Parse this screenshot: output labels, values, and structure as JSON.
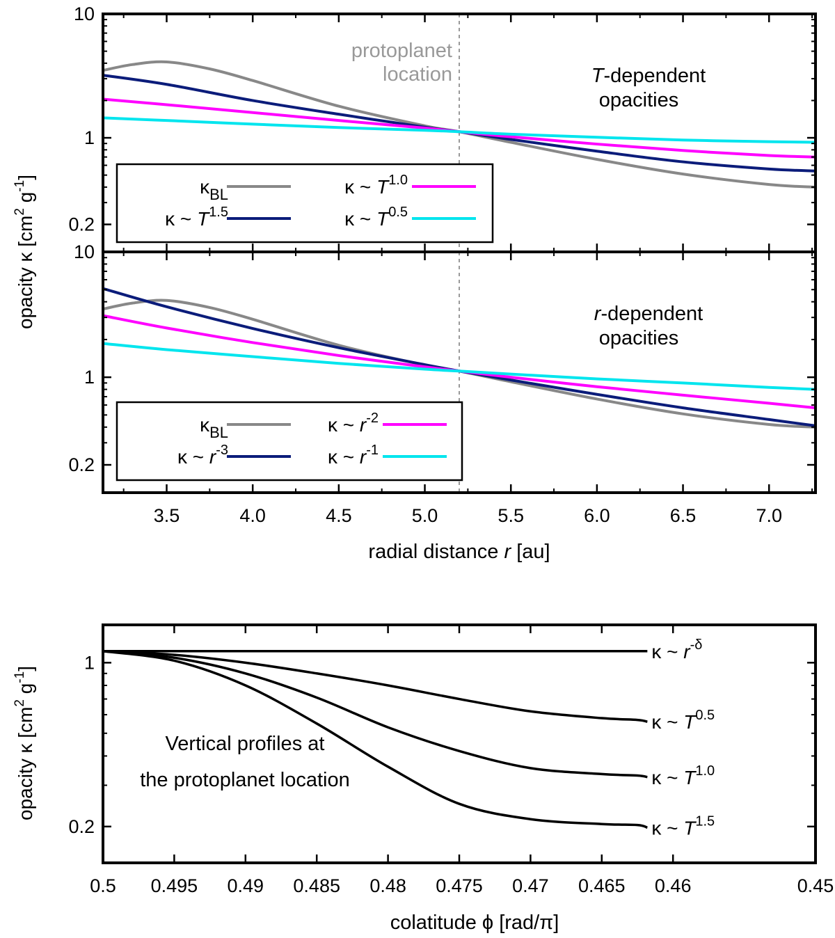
{
  "colors": {
    "kBL": "#888888",
    "k3": "#0b1c7a",
    "k2": "#ff00ff",
    "k1": "#00e5ee",
    "black": "#000000",
    "marker": "#999999"
  },
  "chart_data": [
    {
      "id": "top",
      "type": "line",
      "yscale": "log",
      "xlim": [
        3.13,
        7.27
      ],
      "ylim": [
        0.12,
        10
      ],
      "yticks": [
        0.2,
        1,
        10
      ],
      "ytick_labels": [
        "0.2",
        "1",
        "10"
      ],
      "xticks": [
        3.5,
        4.0,
        4.5,
        5.0,
        5.5,
        6.0,
        6.5,
        7.0
      ],
      "marker_line": {
        "x": 5.2,
        "label": [
          "protoplanet",
          "location"
        ]
      },
      "annotation": [
        "T-dependent",
        "opacities"
      ],
      "series": [
        {
          "name": "κBL",
          "color": "kBL",
          "x": [
            3.13,
            3.3,
            3.5,
            3.75,
            4.0,
            4.5,
            5.0,
            5.2,
            5.5,
            6.0,
            6.5,
            7.0,
            7.27
          ],
          "y": [
            3.5,
            3.9,
            4.1,
            3.6,
            2.9,
            1.8,
            1.25,
            1.12,
            0.92,
            0.67,
            0.51,
            0.42,
            0.4
          ]
        },
        {
          "name": "κ ~ T^1.5",
          "color": "k3",
          "x": [
            3.13,
            3.5,
            4.0,
            4.5,
            5.0,
            5.2,
            5.5,
            6.0,
            6.5,
            7.0,
            7.27
          ],
          "y": [
            3.2,
            2.7,
            2.0,
            1.55,
            1.22,
            1.12,
            0.97,
            0.78,
            0.64,
            0.56,
            0.54
          ]
        },
        {
          "name": "κ ~ T^1.0",
          "color": "k2",
          "x": [
            3.13,
            3.5,
            4.0,
            4.5,
            5.0,
            5.2,
            5.5,
            6.0,
            6.5,
            7.0,
            7.27
          ],
          "y": [
            2.05,
            1.85,
            1.6,
            1.38,
            1.2,
            1.12,
            1.02,
            0.89,
            0.79,
            0.72,
            0.7
          ]
        },
        {
          "name": "κ ~ T^0.5",
          "color": "k1",
          "x": [
            3.13,
            3.5,
            4.0,
            4.5,
            5.0,
            5.2,
            5.5,
            6.0,
            6.5,
            7.0,
            7.27
          ],
          "y": [
            1.45,
            1.38,
            1.29,
            1.21,
            1.15,
            1.12,
            1.07,
            1.01,
            0.96,
            0.93,
            0.92
          ]
        }
      ],
      "legend": [
        {
          "sym": "κ",
          "sub": "BL",
          "sep": "",
          "var": "",
          "exp": "",
          "color": "kBL"
        },
        {
          "sym": "κ",
          "sub": "",
          "sep": " ~ ",
          "var": "T",
          "exp": "1.0",
          "color": "k2"
        },
        {
          "sym": "κ",
          "sub": "",
          "sep": " ~ ",
          "var": "T",
          "exp": "1.5",
          "color": "k3"
        },
        {
          "sym": "κ",
          "sub": "",
          "sep": " ~ ",
          "var": "T",
          "exp": "0.5",
          "color": "k1"
        }
      ]
    },
    {
      "id": "middle",
      "type": "line",
      "yscale": "log",
      "xlim": [
        3.13,
        7.27
      ],
      "ylim": [
        0.12,
        10
      ],
      "yticks": [
        0.2,
        1,
        10
      ],
      "ytick_labels": [
        "0.2",
        "1",
        "10"
      ],
      "xticks": [
        3.5,
        4.0,
        4.5,
        5.0,
        5.5,
        6.0,
        6.5,
        7.0
      ],
      "xtick_labels": [
        "3.5",
        "4.0",
        "4.5",
        "5.0",
        "5.5",
        "6.0",
        "6.5",
        "7.0"
      ],
      "xlabel": "radial distance r [au]",
      "marker_line": {
        "x": 5.2
      },
      "annotation": [
        "r-dependent",
        "opacities"
      ],
      "series": [
        {
          "name": "κBL",
          "color": "kBL",
          "x": [
            3.13,
            3.3,
            3.5,
            3.75,
            4.0,
            4.5,
            5.0,
            5.2,
            5.5,
            6.0,
            6.5,
            7.0,
            7.27
          ],
          "y": [
            3.5,
            3.9,
            4.1,
            3.6,
            2.9,
            1.8,
            1.25,
            1.12,
            0.92,
            0.67,
            0.51,
            0.42,
            0.4
          ]
        },
        {
          "name": "κ ~ r^-3",
          "color": "k3",
          "x": [
            3.13,
            3.5,
            4.0,
            4.5,
            5.0,
            5.2,
            5.5,
            6.0,
            6.5,
            7.0,
            7.27
          ],
          "y": [
            5.1,
            3.65,
            2.45,
            1.72,
            1.26,
            1.12,
            0.95,
            0.73,
            0.57,
            0.46,
            0.41
          ]
        },
        {
          "name": "κ ~ r^-2",
          "color": "k2",
          "x": [
            3.13,
            3.5,
            4.0,
            4.5,
            5.0,
            5.2,
            5.5,
            6.0,
            6.5,
            7.0,
            7.27
          ],
          "y": [
            3.1,
            2.47,
            1.89,
            1.49,
            1.21,
            1.12,
            1.0,
            0.84,
            0.72,
            0.62,
            0.57
          ]
        },
        {
          "name": "κ ~ r^-1",
          "color": "k1",
          "x": [
            3.13,
            3.5,
            4.0,
            4.5,
            5.0,
            5.2,
            5.5,
            6.0,
            6.5,
            7.0,
            7.27
          ],
          "y": [
            1.86,
            1.66,
            1.46,
            1.29,
            1.16,
            1.12,
            1.06,
            0.97,
            0.9,
            0.83,
            0.8
          ]
        }
      ],
      "legend": [
        {
          "sym": "κ",
          "sub": "BL",
          "sep": "",
          "var": "",
          "exp": "",
          "color": "kBL"
        },
        {
          "sym": "κ",
          "sub": "",
          "sep": " ~ ",
          "var": "r",
          "exp": "-2",
          "color": "k2"
        },
        {
          "sym": "κ",
          "sub": "",
          "sep": " ~ ",
          "var": "r",
          "exp": "-3",
          "color": "k3"
        },
        {
          "sym": "κ",
          "sub": "",
          "sep": " ~ ",
          "var": "r",
          "exp": "-1",
          "color": "k1"
        }
      ]
    },
    {
      "id": "bottom",
      "type": "line",
      "yscale": "log",
      "xlim": [
        0.5,
        0.45
      ],
      "ylim": [
        0.14,
        1.45
      ],
      "yticks": [
        0.2,
        1
      ],
      "ytick_labels": [
        "0.2",
        "1"
      ],
      "xticks": [
        0.5,
        0.495,
        0.49,
        0.485,
        0.48,
        0.475,
        0.47,
        0.465,
        0.46,
        0.45
      ],
      "xtick_labels": [
        "0.5",
        "0.495",
        "0.49",
        "0.485",
        "0.48",
        "0.475",
        "0.47",
        "0.465",
        "0.46",
        "0.45"
      ],
      "xlabel": "colatitude ϕ [rad/π]",
      "annotation": [
        "Vertical profiles at",
        "the protoplanet location"
      ],
      "series": [
        {
          "name": "κ ~ r^-δ",
          "color": "black",
          "x": [
            0.5,
            0.4618
          ],
          "y": [
            1.12,
            1.12
          ],
          "label": {
            "sym": "κ",
            "sep": " ~ ",
            "var": "r",
            "exp": "-δ"
          }
        },
        {
          "name": "κ ~ T^0.5",
          "color": "black",
          "x": [
            0.5,
            0.495,
            0.49,
            0.485,
            0.48,
            0.475,
            0.47,
            0.465,
            0.4625,
            0.4618
          ],
          "y": [
            1.12,
            1.08,
            1.0,
            0.9,
            0.8,
            0.7,
            0.62,
            0.58,
            0.57,
            0.56
          ],
          "label": {
            "sym": "κ",
            "sep": " ~ ",
            "var": "T",
            "exp": "0.5"
          }
        },
        {
          "name": "κ ~ T^1.0",
          "color": "black",
          "x": [
            0.5,
            0.495,
            0.49,
            0.485,
            0.48,
            0.475,
            0.47,
            0.465,
            0.4625,
            0.4618
          ],
          "y": [
            1.12,
            1.05,
            0.9,
            0.71,
            0.53,
            0.42,
            0.355,
            0.335,
            0.33,
            0.325
          ],
          "label": {
            "sym": "κ",
            "sep": " ~ ",
            "var": "T",
            "exp": "1.0"
          }
        },
        {
          "name": "κ ~ T^1.5",
          "color": "black",
          "x": [
            0.5,
            0.495,
            0.49,
            0.485,
            0.48,
            0.475,
            0.47,
            0.465,
            0.4625,
            0.4618
          ],
          "y": [
            1.12,
            1.02,
            0.8,
            0.55,
            0.36,
            0.25,
            0.215,
            0.205,
            0.203,
            0.198
          ],
          "label": {
            "sym": "κ",
            "sep": " ~ ",
            "var": "T",
            "exp": "1.5"
          }
        }
      ]
    }
  ],
  "ylabel": {
    "sym": "opacity κ [cm",
    "exp1": "2",
    "mid": " g",
    "exp2": "-1",
    "end": "]"
  }
}
